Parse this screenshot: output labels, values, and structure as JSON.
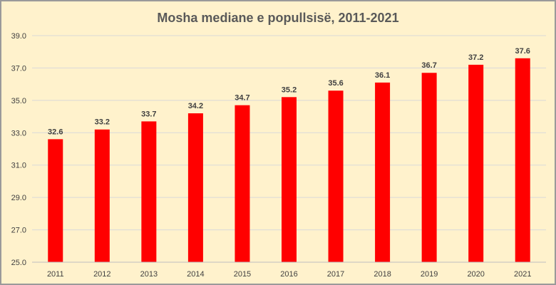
{
  "chart_data": {
    "type": "bar",
    "title": "Mosha mediane e popullsisë, 2011-2021",
    "categories": [
      "2011",
      "2012",
      "2013",
      "2014",
      "2015",
      "2016",
      "2017",
      "2018",
      "2019",
      "2020",
      "2021"
    ],
    "values": [
      32.6,
      33.2,
      33.7,
      34.2,
      34.7,
      35.2,
      35.6,
      36.1,
      36.7,
      37.2,
      37.6
    ],
    "data_labels": [
      "32.6",
      "33.2",
      "33.7",
      "34.2",
      "34.7",
      "35.2",
      "35.6",
      "36.1",
      "36.7",
      "37.2",
      "37.6"
    ],
    "ylim": [
      25,
      39
    ],
    "yticks": [
      25,
      27,
      29,
      31,
      33,
      35,
      37,
      39
    ],
    "ytick_labels": [
      "25.0",
      "27.0",
      "29.0",
      "31.0",
      "33.0",
      "35.0",
      "37.0",
      "39.0"
    ],
    "xlabel": "",
    "ylabel": "",
    "grid": true,
    "legend": "none",
    "colors": {
      "bar": "#ff0000",
      "background": "#fff2cc",
      "grid": "#d9d9d9",
      "text": "#404040"
    }
  }
}
